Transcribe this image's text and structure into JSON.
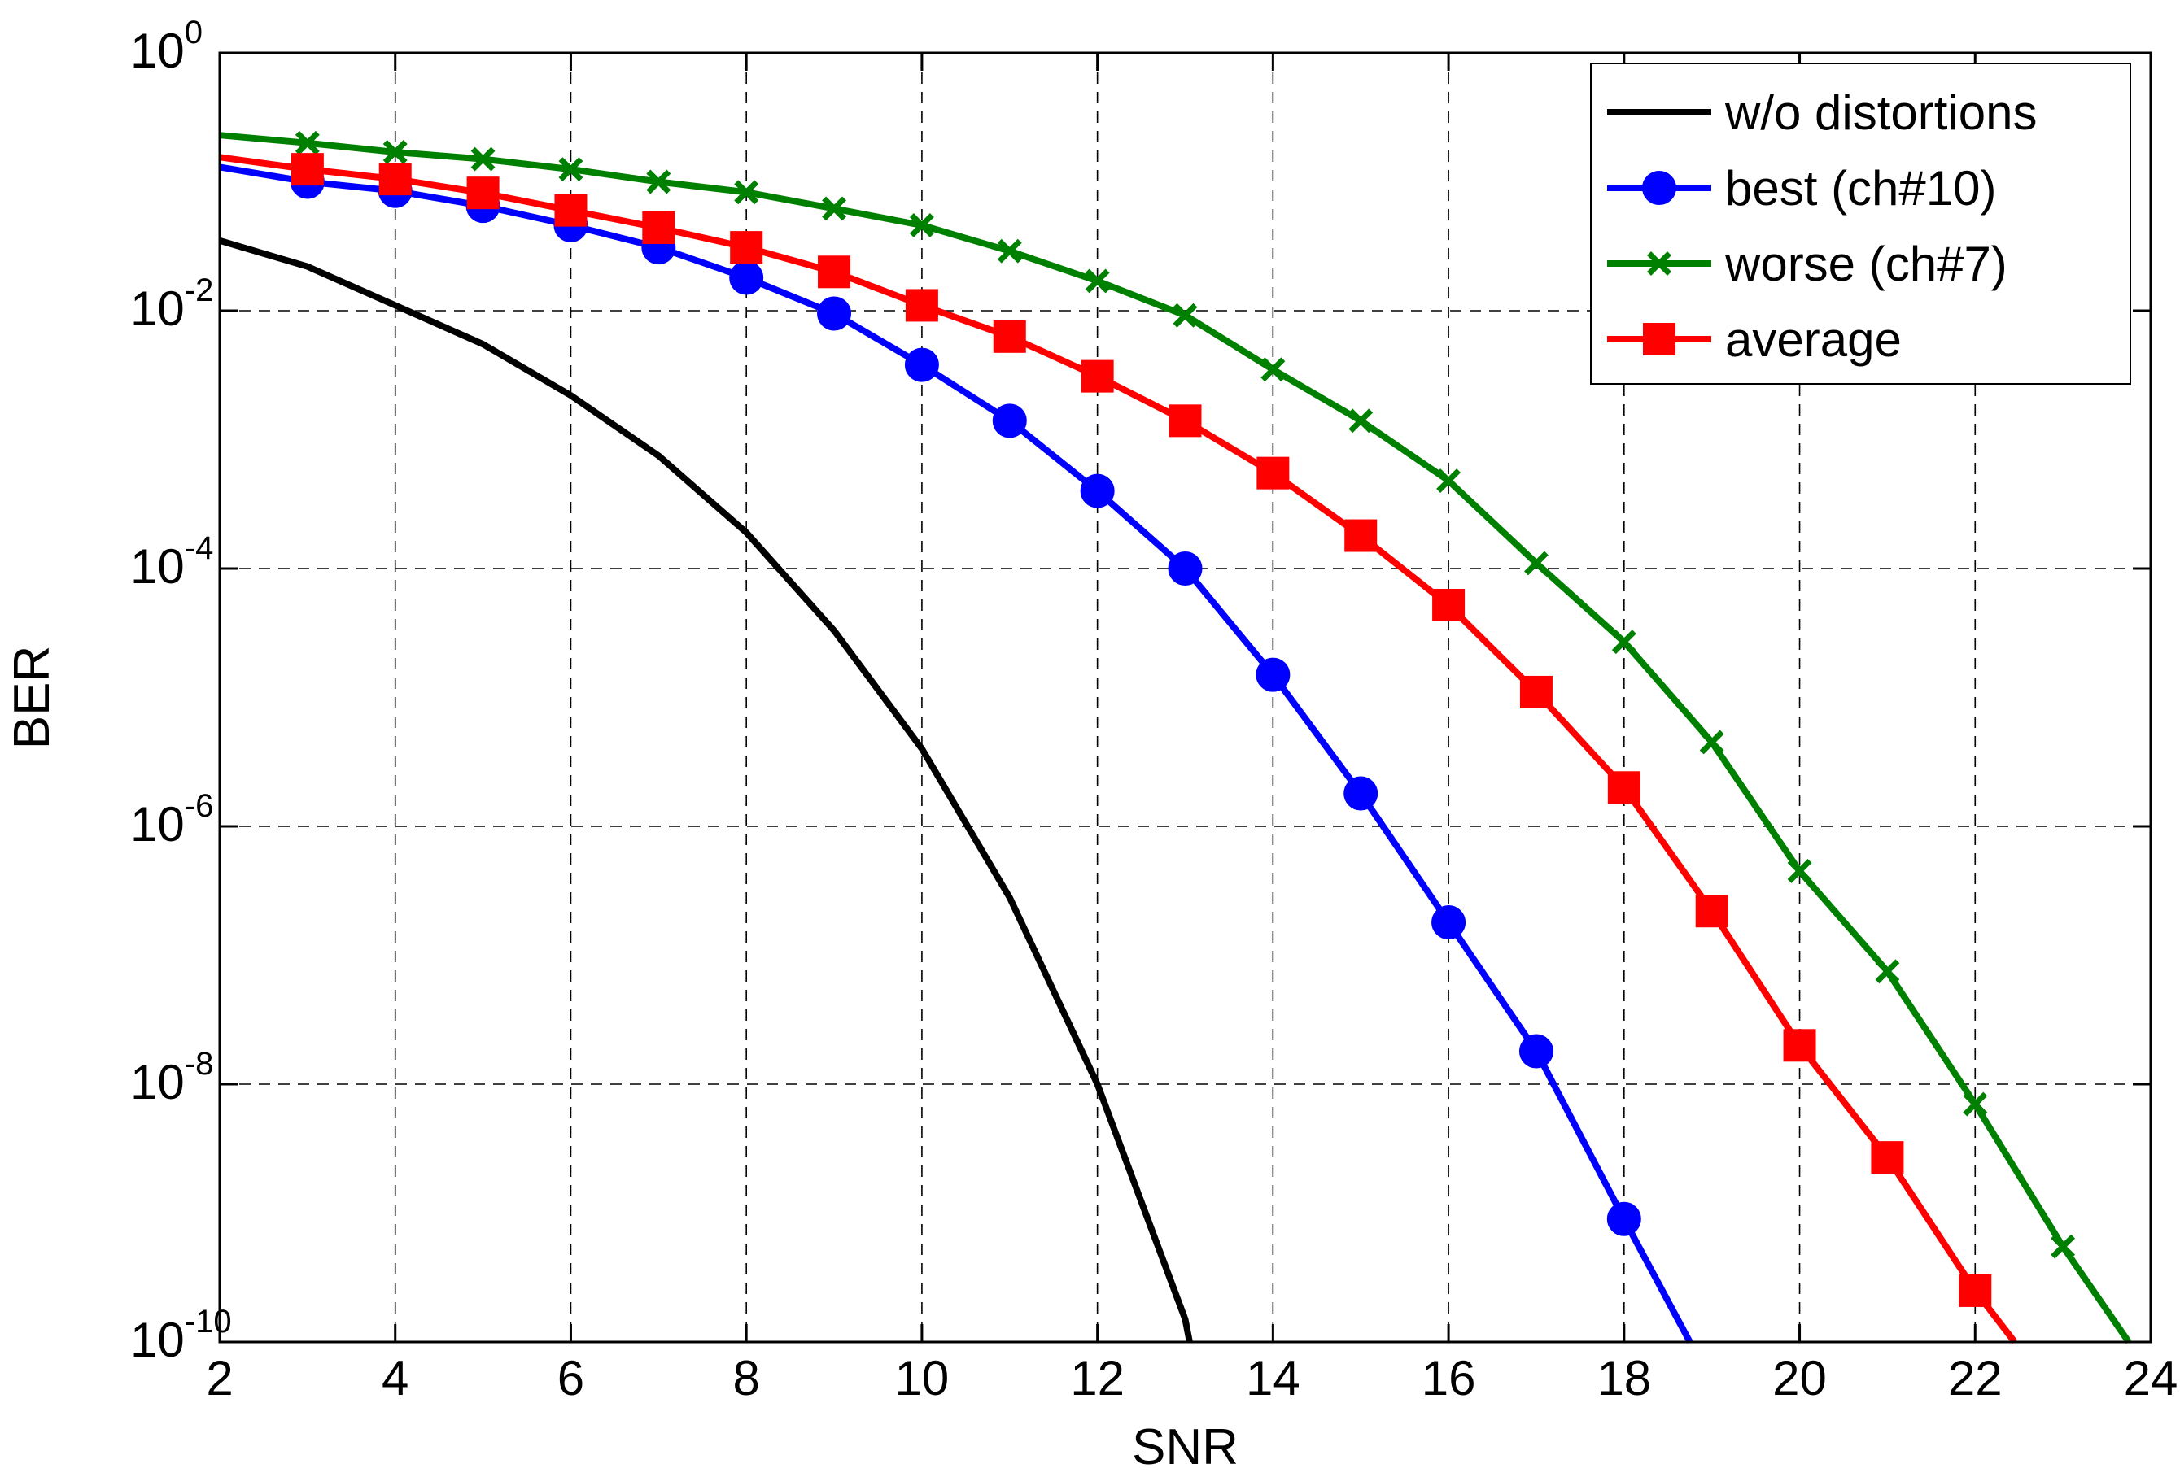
{
  "chart_data": {
    "type": "line",
    "xlabel": "SNR",
    "ylabel": "BER",
    "xlim": [
      2,
      24
    ],
    "ylim": [
      1e-10,
      1
    ],
    "yscale": "log",
    "grid": true,
    "legend_position": "top-right",
    "xticks": [
      2,
      4,
      6,
      8,
      10,
      12,
      14,
      16,
      18,
      20,
      22,
      24
    ],
    "xtick_labels": [
      "2",
      "4",
      "6",
      "8",
      "10",
      "12",
      "14",
      "16",
      "18",
      "20",
      "22",
      "24"
    ],
    "yticks": [
      {
        "value": 1,
        "base": "10",
        "exp": "0"
      },
      {
        "value": 0.01,
        "base": "10",
        "exp": "-2"
      },
      {
        "value": 0.0001,
        "base": "10",
        "exp": "-4"
      },
      {
        "value": 1e-06,
        "base": "10",
        "exp": "-6"
      },
      {
        "value": 1e-08,
        "base": "10",
        "exp": "-8"
      },
      {
        "value": 1e-10,
        "base": "10",
        "exp": "-10"
      }
    ],
    "series": [
      {
        "name": "w/o distortions",
        "color": "#000000",
        "marker": "none",
        "x": [
          2,
          3,
          4,
          5,
          6,
          7,
          8,
          9,
          10,
          11,
          12,
          13,
          13.05
        ],
        "y": [
          0.035,
          0.022,
          0.011,
          0.0055,
          0.0022,
          0.00075,
          0.00019,
          3.3e-05,
          4e-06,
          2.8e-07,
          1e-08,
          1.5e-10,
          1e-10
        ]
      },
      {
        "name": "best (ch#10)",
        "color": "#0000ff",
        "marker": "circle",
        "x": [
          2,
          3,
          4,
          5,
          6,
          7,
          8,
          9,
          10,
          11,
          12,
          13,
          14,
          15,
          16,
          17,
          18,
          18.75
        ],
        "y": [
          0.13,
          0.1,
          0.085,
          0.065,
          0.046,
          0.031,
          0.018,
          0.0095,
          0.0038,
          0.0014,
          0.0004,
          0.0001,
          1.5e-05,
          1.8e-06,
          1.8e-07,
          1.8e-08,
          9e-10,
          1e-10
        ]
      },
      {
        "name": "worse (ch#7)",
        "color": "#008000",
        "marker": "x",
        "x": [
          2,
          3,
          4,
          5,
          6,
          7,
          8,
          9,
          10,
          11,
          12,
          13,
          14,
          15,
          16,
          17,
          18,
          19,
          20,
          21,
          22,
          23,
          23.75
        ],
        "y": [
          0.23,
          0.2,
          0.17,
          0.15,
          0.125,
          0.1,
          0.083,
          0.062,
          0.046,
          0.029,
          0.017,
          0.0092,
          0.0035,
          0.0014,
          0.00048,
          0.00011,
          2.7e-05,
          4.5e-06,
          4.5e-07,
          7.5e-08,
          7e-09,
          5.5e-10,
          1e-10
        ]
      },
      {
        "name": "average",
        "color": "#ff0000",
        "marker": "square",
        "x": [
          2,
          3,
          4,
          5,
          6,
          7,
          8,
          9,
          10,
          11,
          12,
          13,
          14,
          15,
          16,
          17,
          18,
          19,
          20,
          21,
          22,
          22.45
        ],
        "y": [
          0.155,
          0.125,
          0.105,
          0.082,
          0.06,
          0.044,
          0.031,
          0.02,
          0.011,
          0.0063,
          0.0031,
          0.0014,
          0.00055,
          0.00018,
          5.2e-05,
          1.1e-05,
          2e-06,
          2.2e-07,
          2e-08,
          2.7e-09,
          2.5e-10,
          1e-10
        ]
      }
    ]
  }
}
